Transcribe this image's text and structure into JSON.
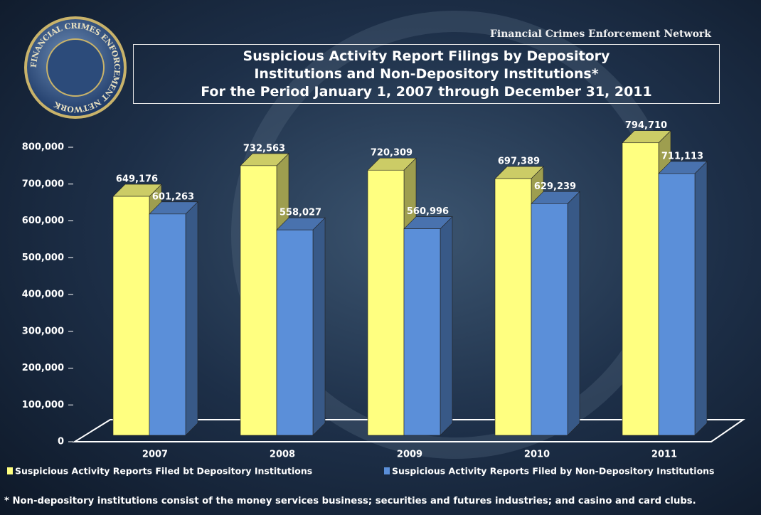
{
  "header": "Financial Crimes Enforcement Network",
  "seal": "FINANCIAL CRIMES ENFORCEMENT NETWORK",
  "chart_data": {
    "type": "bar3d",
    "title": "Suspicious Activity Report Filings by Depository Institutions and Non-Depository Institutions*",
    "subtitle": "For the Period January 1, 2007 through December 31, 2011",
    "categories": [
      "2007",
      "2008",
      "2009",
      "2010",
      "2011"
    ],
    "series": [
      {
        "name": "Suspicious Activity Reports Filed bt Depository Institutions",
        "color": "#ffff80",
        "values": [
          649176,
          732563,
          720309,
          697389,
          794710
        ],
        "value_labels": [
          "649,176",
          "732,563",
          "720,309",
          "697,389",
          "794,710"
        ]
      },
      {
        "name": "Suspicious Activity Reports Filed by Non-Depository Institutions",
        "color": "#5b8fd9",
        "values": [
          601263,
          558027,
          560996,
          629239,
          711113
        ],
        "value_labels": [
          "601,263",
          "558,027",
          "560,996",
          "629,239",
          "711,113"
        ]
      }
    ],
    "ylim": [
      0,
      800000
    ],
    "yticks": [
      0,
      {
        "value": 100000,
        "label": "100,000"
      },
      {
        "value": 200000,
        "label": "200,000"
      },
      {
        "value": 300000,
        "label": "300,000"
      },
      {
        "value": 400000,
        "label": "400,000"
      },
      {
        "value": 500000,
        "label": "500,000"
      },
      {
        "value": 600000,
        "label": "600,000"
      },
      {
        "value": 700000,
        "label": "700,000"
      },
      {
        "value": 800000,
        "label": "800,000"
      }
    ],
    "legend": "bottom",
    "footnote": "* Non-depository institutions consist of the money services business; securities and futures industries; and casino and card clubs."
  }
}
